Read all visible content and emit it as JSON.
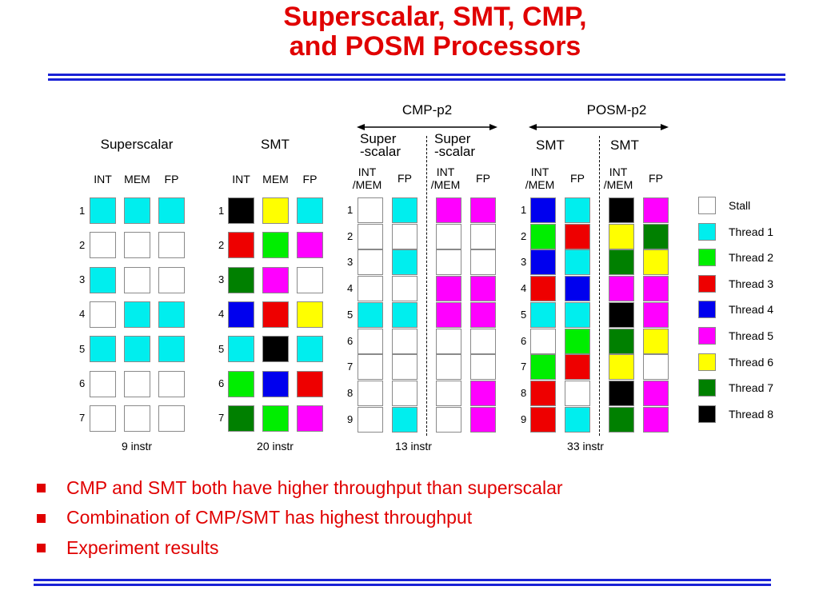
{
  "title": {
    "line1": "Superscalar, SMT, CMP,",
    "line2": "and POSM Processors"
  },
  "colors": {
    "stall": "#ffffff",
    "T1": "#00eeee",
    "T2": "#00ee00",
    "T3": "#ee0000",
    "T4": "#0000ee",
    "T5": "#ff00ff",
    "T6": "#ffff00",
    "T7": "#008000",
    "T8": "#000000",
    "accent_title": "#e00000",
    "rule": "#1a22d6"
  },
  "groups": {
    "cmp": {
      "label": "CMP-p2",
      "left_core": [
        "Super",
        "-scalar"
      ],
      "right_core": [
        "Super",
        "-scalar"
      ]
    },
    "posm": {
      "label": "POSM-p2",
      "left_core": "SMT",
      "right_core": "SMT"
    }
  },
  "diagrams": [
    {
      "key": "superscalar",
      "label": "Superscalar",
      "columns": [
        "INT",
        "MEM",
        "FP"
      ],
      "rows": [
        "1",
        "2",
        "3",
        "4",
        "5",
        "6",
        "7"
      ],
      "grid": [
        [
          "T1",
          "T1",
          "T1"
        ],
        [
          "S",
          "S",
          "S"
        ],
        [
          "T1",
          "S",
          "S"
        ],
        [
          "S",
          "T1",
          "T1"
        ],
        [
          "T1",
          "T1",
          "T1"
        ],
        [
          "S",
          "S",
          "S"
        ],
        [
          "S",
          "S",
          "S"
        ]
      ],
      "instr": "9 instr"
    },
    {
      "key": "smt",
      "label": "SMT",
      "columns": [
        "INT",
        "MEM",
        "FP"
      ],
      "rows": [
        "1",
        "2",
        "3",
        "4",
        "5",
        "6",
        "7"
      ],
      "grid": [
        [
          "T8",
          "T6",
          "T1"
        ],
        [
          "T3",
          "T2",
          "T5"
        ],
        [
          "T7",
          "T5",
          "S"
        ],
        [
          "T4",
          "T3",
          "T6"
        ],
        [
          "T1",
          "T8",
          "T1"
        ],
        [
          "T2",
          "T4",
          "T3"
        ],
        [
          "T7",
          "T2",
          "T5"
        ]
      ],
      "instr": "20 instr"
    },
    {
      "key": "cmp",
      "columns": [
        "INT\n/MEM",
        "FP",
        "INT\n/MEM",
        "FP"
      ],
      "rows": [
        "1",
        "2",
        "3",
        "4",
        "5",
        "6",
        "7",
        "8",
        "9"
      ],
      "grid": [
        [
          "S",
          "T1",
          "T5",
          "T5"
        ],
        [
          "S",
          "S",
          "S",
          "S"
        ],
        [
          "S",
          "T1",
          "S",
          "S"
        ],
        [
          "S",
          "S",
          "T5",
          "T5"
        ],
        [
          "T1",
          "T1",
          "T5",
          "T5"
        ],
        [
          "S",
          "S",
          "S",
          "S"
        ],
        [
          "S",
          "S",
          "S",
          "S"
        ],
        [
          "S",
          "S",
          "S",
          "T5"
        ],
        [
          "S",
          "T1",
          "S",
          "T5"
        ]
      ],
      "instr": "13 instr"
    },
    {
      "key": "posm",
      "columns": [
        "INT\n/MEM",
        "FP",
        "INT\n/MEM",
        "FP"
      ],
      "rows": [
        "1",
        "2",
        "3",
        "4",
        "5",
        "6",
        "7",
        "8",
        "9"
      ],
      "grid": [
        [
          "T4",
          "T1",
          "T8",
          "T5"
        ],
        [
          "T2",
          "T3",
          "T6",
          "T7"
        ],
        [
          "T4",
          "T1",
          "T7",
          "T6"
        ],
        [
          "T3",
          "T4",
          "T5",
          "T5"
        ],
        [
          "T1",
          "T1",
          "T8",
          "T5"
        ],
        [
          "S",
          "T2",
          "T7",
          "T6"
        ],
        [
          "T2",
          "T3",
          "T6",
          "S"
        ],
        [
          "T3",
          "S",
          "T8",
          "T5"
        ],
        [
          "T3",
          "T1",
          "T7",
          "T5"
        ]
      ],
      "instr": "33 instr"
    }
  ],
  "legend": [
    {
      "color": "stall",
      "label": "Stall"
    },
    {
      "color": "T1",
      "label": "Thread 1"
    },
    {
      "color": "T2",
      "label": "Thread 2"
    },
    {
      "color": "T3",
      "label": "Thread 3"
    },
    {
      "color": "T4",
      "label": "Thread 4"
    },
    {
      "color": "T5",
      "label": "Thread 5"
    },
    {
      "color": "T6",
      "label": "Thread 6"
    },
    {
      "color": "T7",
      "label": "Thread 7"
    },
    {
      "color": "T8",
      "label": "Thread 8"
    }
  ],
  "bullets": [
    "CMP and SMT both have higher throughput than superscalar",
    "Combination of CMP/SMT has highest throughput",
    "Experiment results"
  ]
}
